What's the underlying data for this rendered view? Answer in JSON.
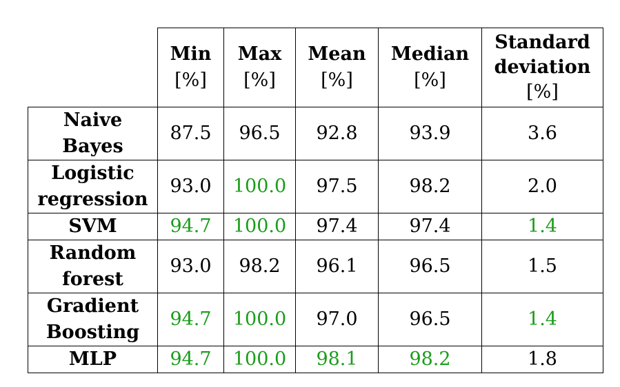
{
  "table": {
    "columns": [
      {
        "line1": "Min",
        "line2": "[%]",
        "line3": ""
      },
      {
        "line1": "Max",
        "line2": "[%]",
        "line3": ""
      },
      {
        "line1": "Mean",
        "line2": "[%]",
        "line3": ""
      },
      {
        "line1": "Median",
        "line2": "[%]",
        "line3": ""
      },
      {
        "line1": "Standard",
        "line2": "deviation",
        "line3": "[%]"
      }
    ],
    "rows": [
      {
        "line1": "Naive",
        "line2": "Bayes",
        "values": [
          "87.5",
          "96.5",
          "92.8",
          "93.9",
          "3.6"
        ]
      },
      {
        "line1": "Logistic",
        "line2": "regression",
        "values": [
          "93.0",
          "100.0",
          "97.5",
          "98.2",
          "2.0"
        ]
      },
      {
        "line1": "SVM",
        "line2": "",
        "values": [
          "94.7",
          "100.0",
          "97.4",
          "97.4",
          "1.4"
        ]
      },
      {
        "line1": "Random",
        "line2": "forest",
        "values": [
          "93.0",
          "98.2",
          "96.1",
          "96.5",
          "1.5"
        ]
      },
      {
        "line1": "Gradient",
        "line2": "Boosting",
        "values": [
          "94.7",
          "100.0",
          "97.0",
          "96.5",
          "1.4"
        ]
      },
      {
        "line1": "MLP",
        "line2": "",
        "values": [
          "94.7",
          "100.0",
          "98.1",
          "98.2",
          "1.8"
        ]
      }
    ],
    "highlight_color": "#1a9c1a",
    "highlighted_cells": [
      [
        1,
        1
      ],
      [
        2,
        0
      ],
      [
        2,
        1
      ],
      [
        2,
        4
      ],
      [
        4,
        0
      ],
      [
        4,
        1
      ],
      [
        4,
        4
      ],
      [
        5,
        0
      ],
      [
        5,
        1
      ],
      [
        5,
        2
      ],
      [
        5,
        3
      ]
    ]
  }
}
